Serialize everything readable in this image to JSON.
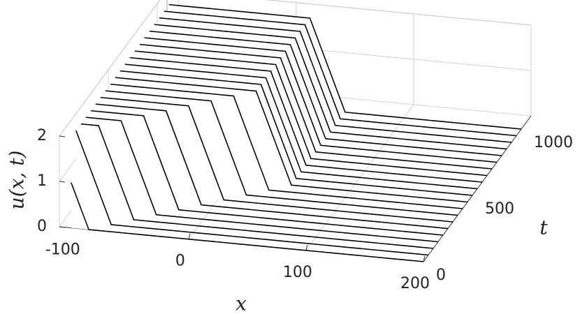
{
  "chart_data": {
    "type": "waterfall",
    "xlabel": "x",
    "ylabel": "t",
    "zlabel": "u(x, t)",
    "xlim": [
      -110,
      200
    ],
    "ylim": [
      0,
      1100
    ],
    "zlim": [
      0,
      2
    ],
    "xticks": [
      -100,
      0,
      100,
      200
    ],
    "yticks": [
      0,
      500,
      1000
    ],
    "zticks": [
      0,
      1,
      2
    ],
    "grid": true,
    "color": "#000000",
    "x": [
      -100,
      -85,
      -70,
      -55,
      -40,
      -25,
      -10,
      5,
      20,
      35,
      50,
      65,
      80,
      95,
      110,
      125,
      140,
      155,
      170,
      185,
      200
    ],
    "series": [
      {
        "t": 0,
        "values": [
          1,
          0,
          0,
          0,
          0,
          0,
          0,
          0,
          0,
          0,
          0,
          0,
          0,
          0,
          0,
          0,
          0,
          0,
          0,
          0,
          0
        ]
      },
      {
        "t": 50,
        "values": [
          2,
          1,
          0,
          0,
          0,
          0,
          0,
          0,
          0,
          0,
          0,
          0,
          0,
          0,
          0,
          0,
          0,
          0,
          0,
          0,
          0
        ]
      },
      {
        "t": 100,
        "values": [
          2,
          2,
          1,
          0,
          0,
          0,
          0,
          0,
          0,
          0,
          0,
          0,
          0,
          0,
          0,
          0,
          0,
          0,
          0,
          0,
          0
        ]
      },
      {
        "t": 150,
        "values": [
          2,
          2,
          2,
          1,
          0,
          0,
          0,
          0,
          0,
          0,
          0,
          0,
          0,
          0,
          0,
          0,
          0,
          0,
          0,
          0,
          0
        ]
      },
      {
        "t": 200,
        "values": [
          2,
          2,
          2,
          2,
          1,
          0,
          0,
          0,
          0,
          0,
          0,
          0,
          0,
          0,
          0,
          0,
          0,
          0,
          0,
          0,
          0
        ]
      },
      {
        "t": 250,
        "values": [
          2,
          2,
          2,
          2,
          2,
          1,
          0,
          0,
          0,
          0,
          0,
          0,
          0,
          0,
          0,
          0,
          0,
          0,
          0,
          0,
          0
        ]
      },
      {
        "t": 300,
        "values": [
          2,
          2,
          2,
          2,
          2,
          2,
          1,
          0,
          0,
          0,
          0,
          0,
          0,
          0,
          0,
          0,
          0,
          0,
          0,
          0,
          0
        ]
      },
      {
        "t": 350,
        "values": [
          2,
          2,
          2,
          2,
          2,
          2,
          2,
          1,
          0,
          0,
          0,
          0,
          0,
          0,
          0,
          0,
          0,
          0,
          0,
          0,
          0
        ]
      },
      {
        "t": 400,
        "values": [
          2,
          2,
          2,
          2,
          2,
          2,
          2,
          2,
          1,
          0,
          0,
          0,
          0,
          0,
          0,
          0,
          0,
          0,
          0,
          0,
          0
        ]
      },
      {
        "t": 450,
        "values": [
          2,
          2,
          2,
          2,
          2,
          2,
          2,
          2,
          2,
          1,
          0,
          0,
          0,
          0,
          0,
          0,
          0,
          0,
          0,
          0,
          0
        ]
      },
      {
        "t": 500,
        "values": [
          2,
          2,
          2,
          2,
          2,
          2,
          2,
          2,
          2,
          1,
          0,
          0,
          0,
          0,
          0,
          0,
          0,
          0,
          0,
          0,
          0
        ]
      },
      {
        "t": 550,
        "values": [
          2,
          2,
          2,
          2,
          2,
          2,
          2,
          2,
          2,
          1,
          0,
          0,
          0,
          0,
          0,
          0,
          0,
          0,
          0,
          0,
          0
        ]
      },
      {
        "t": 600,
        "values": [
          2,
          2,
          2,
          2,
          2,
          2,
          2,
          2,
          2,
          1,
          0,
          0,
          0,
          0,
          0,
          0,
          0,
          0,
          0,
          0,
          0
        ]
      },
      {
        "t": 650,
        "values": [
          2,
          2,
          2,
          2,
          2,
          2,
          2,
          2,
          2,
          1,
          0,
          0,
          0,
          0,
          0,
          0,
          0,
          0,
          0,
          0,
          0
        ]
      },
      {
        "t": 700,
        "values": [
          2,
          2,
          2,
          2,
          2,
          2,
          2,
          2,
          2,
          1,
          0,
          0,
          0,
          0,
          0,
          0,
          0,
          0,
          0,
          0,
          0
        ]
      },
      {
        "t": 750,
        "values": [
          2,
          2,
          2,
          2,
          2,
          2,
          2,
          2,
          2,
          1,
          0,
          0,
          0,
          0,
          0,
          0,
          0,
          0,
          0,
          0,
          0
        ]
      },
      {
        "t": 800,
        "values": [
          2,
          2,
          2,
          2,
          2,
          2,
          2,
          2,
          2,
          1,
          0,
          0,
          0,
          0,
          0,
          0,
          0,
          0,
          0,
          0,
          0
        ]
      },
      {
        "t": 850,
        "values": [
          2,
          2,
          2,
          2,
          2,
          2,
          2,
          2,
          2,
          1,
          0,
          0,
          0,
          0,
          0,
          0,
          0,
          0,
          0,
          0,
          0
        ]
      },
      {
        "t": 900,
        "values": [
          2,
          2,
          2,
          2,
          2,
          2,
          2,
          2,
          2,
          1,
          0,
          0,
          0,
          0,
          0,
          0,
          0,
          0,
          0,
          0,
          0
        ]
      },
      {
        "t": 950,
        "values": [
          2,
          2,
          2,
          2,
          2,
          2,
          2,
          2,
          2,
          1,
          0,
          0,
          0,
          0,
          0,
          0,
          0,
          0,
          0,
          0,
          0
        ]
      },
      {
        "t": 1000,
        "values": [
          2,
          2,
          2,
          2,
          2,
          2,
          2,
          2,
          2,
          1,
          0,
          0,
          0,
          0,
          0,
          0,
          0,
          0,
          0,
          0,
          0
        ]
      }
    ]
  }
}
